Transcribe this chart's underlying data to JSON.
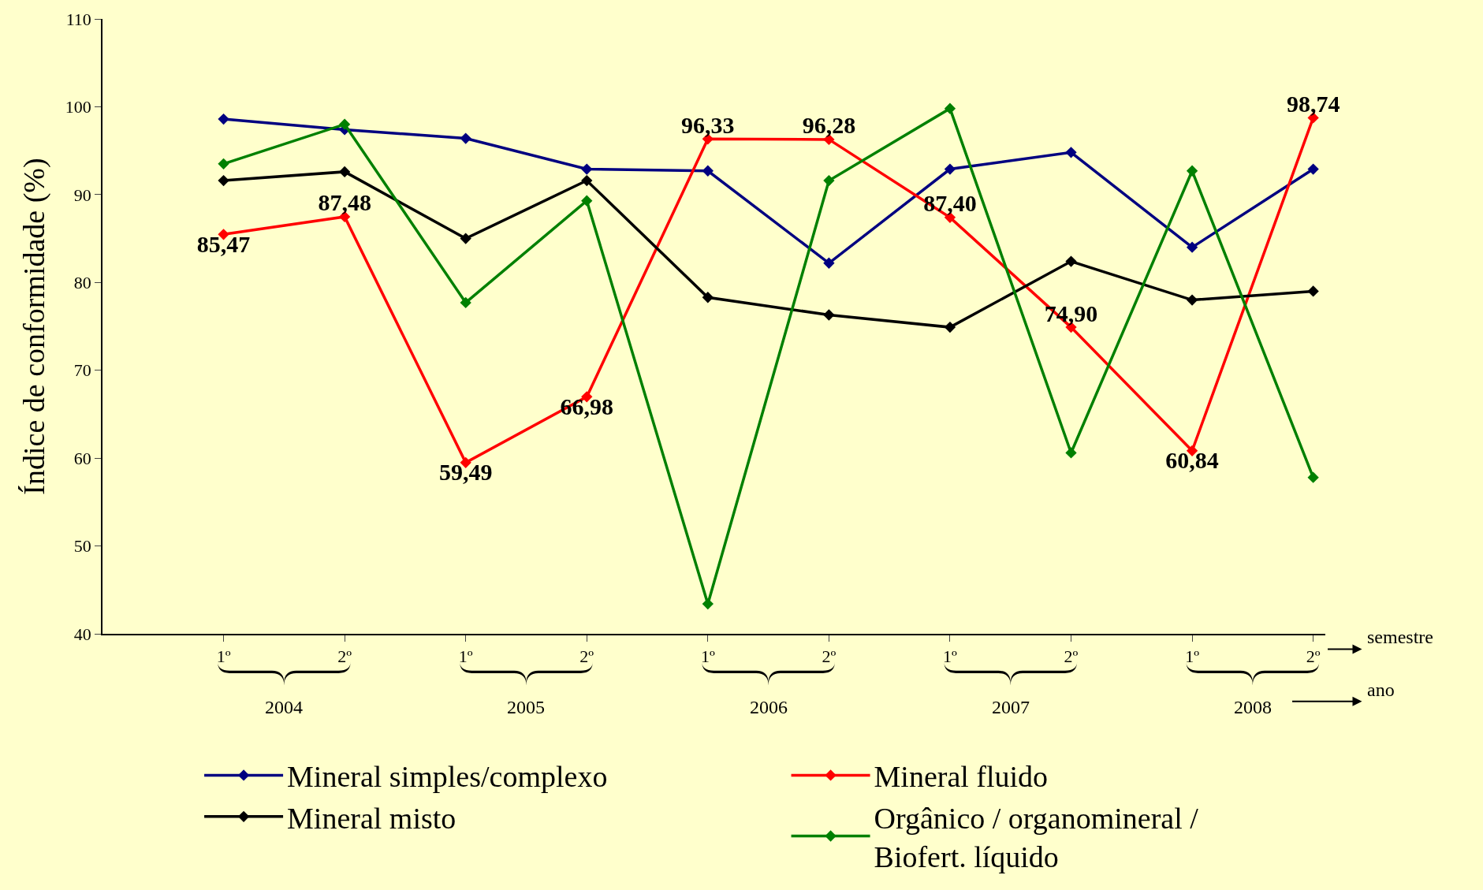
{
  "chart_data": {
    "type": "line",
    "ylabel": "Índice de conformidade (%)",
    "categories": [
      "1º",
      "2º",
      "1º",
      "2º",
      "1º",
      "2º",
      "1º",
      "2º",
      "1º",
      "2º"
    ],
    "ylim": [
      40,
      110
    ],
    "yticks": [
      40,
      50,
      60,
      70,
      80,
      90,
      100,
      110
    ],
    "marker": "diamond",
    "line_style": "solid",
    "grid": false,
    "legend": "bottom",
    "series": [
      {
        "name": "Mineral simples/complexo",
        "color": "#000080",
        "values": [
          98.6,
          97.4,
          96.4,
          92.9,
          92.7,
          82.2,
          92.9,
          94.8,
          84.0,
          92.9
        ]
      },
      {
        "name": "Mineral fluido",
        "color": "#ff0000",
        "values": [
          85.47,
          87.48,
          59.49,
          66.98,
          96.33,
          96.28,
          87.4,
          74.9,
          60.84,
          98.74
        ],
        "value_labels": [
          "85,47",
          "87,48",
          "59,49",
          "66,98",
          "96,33",
          "96,28",
          "87,40",
          "74,90",
          "60,84",
          "98,74"
        ]
      },
      {
        "name": "Mineral misto",
        "color": "#000000",
        "values": [
          91.6,
          92.6,
          85.0,
          91.6,
          78.3,
          76.3,
          74.9,
          82.4,
          78.0,
          79.0
        ]
      },
      {
        "name": "Orgânico / organomineral / Biofert. líquido",
        "color": "#008000",
        "values": [
          93.5,
          98.0,
          77.7,
          89.3,
          43.4,
          91.6,
          99.8,
          60.6,
          92.7,
          57.8
        ]
      }
    ],
    "annotations": [
      "2004",
      "2005",
      "2006",
      "2007",
      "2008",
      "semestre",
      "ano"
    ]
  }
}
